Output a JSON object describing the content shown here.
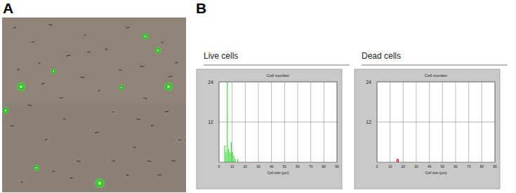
{
  "panel_labels": [
    "A",
    "B"
  ],
  "chart_data": [
    {
      "type": "histogram",
      "title": "Live cells",
      "y_label": "Cell number",
      "x_label": "Cell size (µm)",
      "bins": [
        4,
        5,
        6,
        7,
        8,
        9,
        10,
        11,
        12,
        13,
        14,
        15
      ],
      "counts": [
        5,
        3,
        24,
        4,
        3,
        6,
        3,
        2,
        1,
        0,
        1
      ],
      "color": "#33dd33",
      "xlim": [
        0,
        90
      ],
      "xticks": [
        0,
        10,
        20,
        30,
        40,
        50,
        60,
        70,
        80,
        90
      ],
      "ylim": [
        0,
        24
      ],
      "yticks": [
        12,
        24
      ],
      "grid": true
    },
    {
      "type": "histogram",
      "title": "Dead cells",
      "y_label": "Cell number",
      "x_label": "Cell size (µm)",
      "bins": [
        15,
        16,
        17
      ],
      "counts": [
        1,
        1
      ],
      "color": "#dd0000",
      "xlim": [
        0,
        90
      ],
      "xticks": [
        0,
        10,
        20,
        30,
        40,
        50,
        60,
        70,
        80,
        90
      ],
      "ylim": [
        0,
        24
      ],
      "yticks": [
        12,
        24
      ],
      "grid": true
    }
  ]
}
